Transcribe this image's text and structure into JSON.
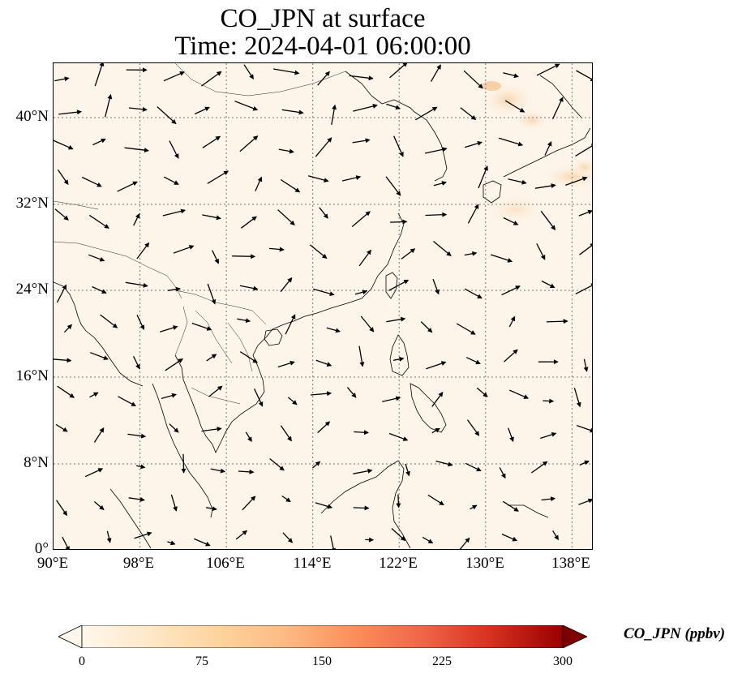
{
  "title": {
    "line1": "CO_JPN at surface",
    "line2": "Time: 2024-04-01 06:00:00"
  },
  "map": {
    "lon_range": [
      90,
      140
    ],
    "lat_range": [
      0,
      45
    ],
    "x_ticks": [
      "90°E",
      "98°E",
      "106°E",
      "114°E",
      "122°E",
      "130°E",
      "138°E"
    ],
    "y_ticks": [
      "0°",
      "8°N",
      "16°N",
      "24°N",
      "32°N",
      "40°N"
    ],
    "gridlines": true,
    "background_color": "#fdf5ea",
    "plume_color": "#f8d3a8",
    "arrow_color": "#000000"
  },
  "colorbar": {
    "label": "CO_JPN (ppbv)",
    "min": 0,
    "max": 300,
    "ticks": [
      "0",
      "75",
      "150",
      "225",
      "300"
    ],
    "colormap": "OrRd",
    "extend": "both"
  }
}
